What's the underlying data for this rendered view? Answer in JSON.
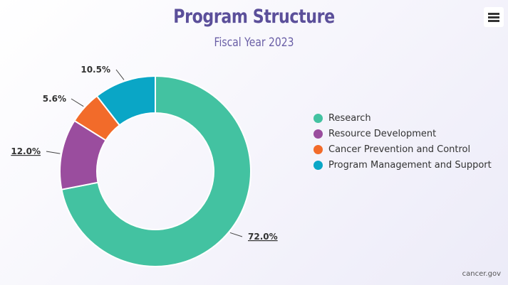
{
  "chart_data": {
    "type": "pie",
    "title": "Program Structure",
    "subtitle": "Fiscal Year 2023",
    "donut": true,
    "slices": [
      {
        "name": "Research",
        "value": 72.0,
        "label": "72.0%",
        "color": "#43c2a1"
      },
      {
        "name": "Resource Development",
        "value": 12.0,
        "label": "12.0%",
        "color": "#9a4d9e"
      },
      {
        "name": "Cancer Prevention and Control",
        "value": 5.6,
        "label": "5.6%",
        "color": "#f26b2a"
      },
      {
        "name": "Program Management and Support",
        "value": 10.5,
        "label": "10.5%",
        "color": "#0aa6c6"
      }
    ],
    "legend_position": "right"
  },
  "menu": {
    "icon": "hamburger-menu-icon"
  },
  "credit": "cancer.gov"
}
